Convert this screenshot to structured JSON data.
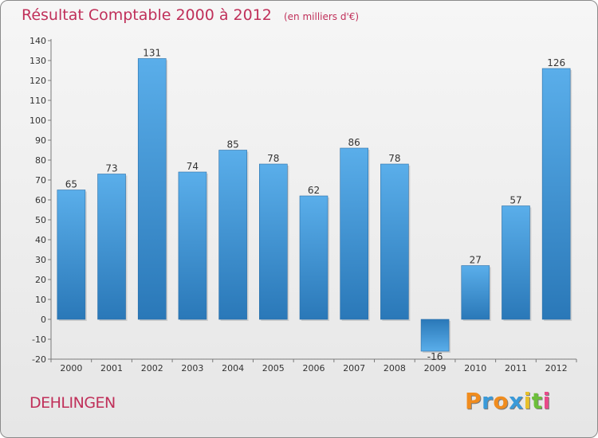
{
  "chart_data": {
    "type": "bar",
    "title": "Résultat Comptable 2000 à 2012",
    "subtitle": "(en milliers d'€)",
    "categories": [
      "2000",
      "2001",
      "2002",
      "2003",
      "2004",
      "2005",
      "2006",
      "2007",
      "2008",
      "2009",
      "2010",
      "2011",
      "2012"
    ],
    "values": [
      65,
      73,
      131,
      74,
      85,
      78,
      62,
      86,
      78,
      -16,
      27,
      57,
      126
    ],
    "ylim": [
      -20,
      140
    ],
    "yticks": [
      140,
      130,
      120,
      110,
      100,
      90,
      80,
      70,
      60,
      50,
      40,
      30,
      20,
      10,
      0,
      -10,
      -20
    ],
    "grid": false,
    "bar_color": "#3a8fd6"
  },
  "footer": {
    "commune": "DEHLINGEN",
    "logo_letters": [
      "P",
      "r",
      "o",
      "x",
      "i",
      "t",
      "i"
    ],
    "logo_colors": [
      "#f08c1e",
      "#3a9ad9",
      "#f08c1e",
      "#3a9ad9",
      "#e8c12a",
      "#6cbf3a",
      "#e84a8a"
    ]
  }
}
